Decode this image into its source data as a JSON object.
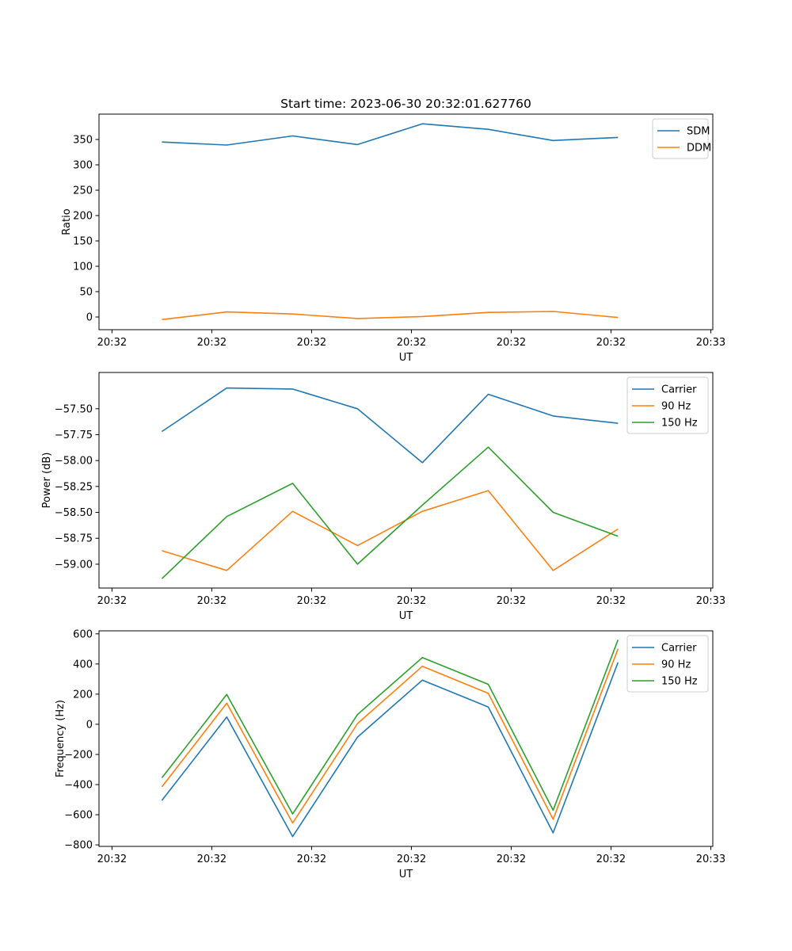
{
  "colors": {
    "blue": "#1f77b4",
    "orange": "#ff7f0e",
    "green": "#2ca02c"
  },
  "chart_data": [
    {
      "type": "line",
      "title": "Start time: 2023-06-30 20:32:01.627760",
      "xlabel": "UT",
      "ylabel": "Ratio",
      "x_ticks": [
        "20:32",
        "20:32",
        "20:32",
        "20:32",
        "20:32",
        "20:32",
        "20:33"
      ],
      "x_tick_positions": [
        0,
        1,
        2,
        3,
        4,
        5,
        6
      ],
      "xlim": [
        -0.13,
        6.02
      ],
      "x": [
        0.5,
        1.15,
        1.81,
        2.46,
        3.11,
        3.77,
        4.42,
        5.07
      ],
      "ylim": [
        -25,
        400
      ],
      "y_ticks": [
        0,
        50,
        100,
        150,
        200,
        250,
        300,
        350
      ],
      "y_tick_labels": [
        "0",
        "50",
        "100",
        "150",
        "200",
        "250",
        "300",
        "350"
      ],
      "legend": "top-right",
      "series": [
        {
          "name": "SDM",
          "color": "#1f77b4",
          "values": [
            345,
            339,
            357,
            340,
            381,
            370,
            348,
            354
          ]
        },
        {
          "name": "DDM",
          "color": "#ff7f0e",
          "values": [
            -5,
            10,
            6,
            -3,
            1,
            9,
            11,
            -1
          ]
        }
      ]
    },
    {
      "type": "line",
      "xlabel": "UT",
      "ylabel": "Power (dB)",
      "x_ticks": [
        "20:32",
        "20:32",
        "20:32",
        "20:32",
        "20:32",
        "20:32",
        "20:33"
      ],
      "x_tick_positions": [
        0,
        1,
        2,
        3,
        4,
        5,
        6
      ],
      "xlim": [
        -0.13,
        6.02
      ],
      "x": [
        0.5,
        1.15,
        1.81,
        2.46,
        3.11,
        3.77,
        4.42,
        5.07
      ],
      "ylim": [
        -59.23,
        -57.15
      ],
      "y_ticks": [
        -59.0,
        -58.75,
        -58.5,
        -58.25,
        -58.0,
        -57.75,
        -57.5
      ],
      "y_tick_labels": [
        "−59.00",
        "−58.75",
        "−58.50",
        "−58.25",
        "−58.00",
        "−57.75",
        "−57.50"
      ],
      "legend": "top-right",
      "series": [
        {
          "name": "Carrier",
          "color": "#1f77b4",
          "values": [
            -57.72,
            -57.3,
            -57.31,
            -57.5,
            -58.02,
            -57.36,
            -57.57,
            -57.64
          ]
        },
        {
          "name": "90 Hz",
          "color": "#ff7f0e",
          "values": [
            -58.87,
            -59.06,
            -58.49,
            -58.82,
            -58.49,
            -58.29,
            -59.06,
            -58.66
          ]
        },
        {
          "name": "150 Hz",
          "color": "#2ca02c",
          "values": [
            -59.14,
            -58.54,
            -58.22,
            -59.0,
            -58.43,
            -57.87,
            -58.5,
            -58.73
          ]
        }
      ]
    },
    {
      "type": "line",
      "xlabel": "UT",
      "ylabel": "Frequency (Hz)",
      "x_ticks": [
        "20:32",
        "20:32",
        "20:32",
        "20:32",
        "20:32",
        "20:32",
        "20:33"
      ],
      "x_tick_positions": [
        0,
        1,
        2,
        3,
        4,
        5,
        6
      ],
      "xlim": [
        -0.13,
        6.02
      ],
      "x": [
        0.5,
        1.15,
        1.81,
        2.46,
        3.11,
        3.77,
        4.42,
        5.07
      ],
      "ylim": [
        -810,
        620
      ],
      "y_ticks": [
        -800,
        -600,
        -400,
        -200,
        0,
        200,
        400,
        600
      ],
      "y_tick_labels": [
        "−800",
        "−600",
        "−400",
        "−200",
        "0",
        "200",
        "400",
        "600"
      ],
      "legend": "top-right",
      "series": [
        {
          "name": "Carrier",
          "color": "#1f77b4",
          "values": [
            -505,
            48,
            -745,
            -85,
            293,
            115,
            -720,
            410
          ]
        },
        {
          "name": "90 Hz",
          "color": "#ff7f0e",
          "values": [
            -415,
            140,
            -655,
            5,
            385,
            205,
            -630,
            500
          ]
        },
        {
          "name": "150 Hz",
          "color": "#2ca02c",
          "values": [
            -355,
            198,
            -595,
            65,
            443,
            265,
            -570,
            560
          ]
        }
      ]
    }
  ]
}
